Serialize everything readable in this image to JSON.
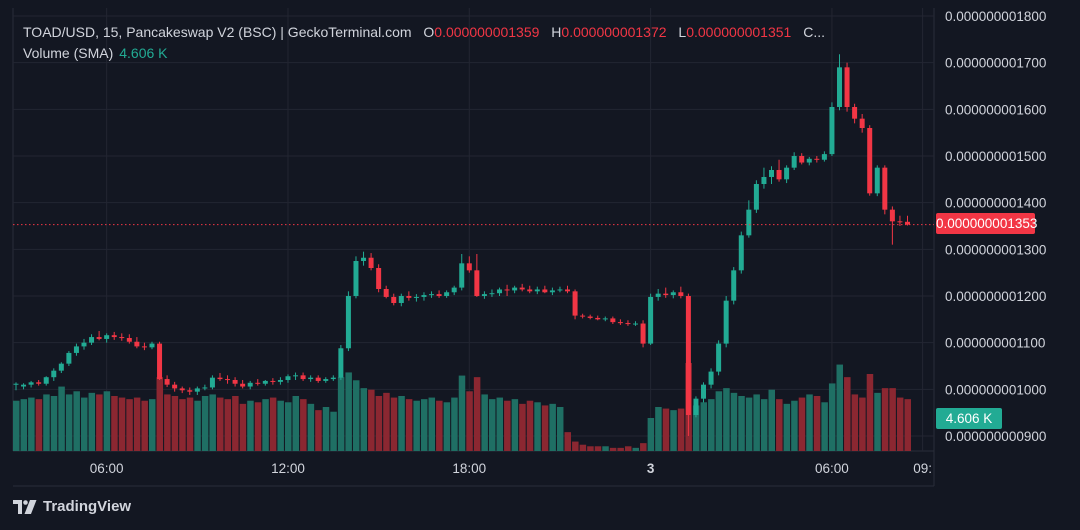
{
  "header": {
    "symbol_line": "TOAD/USD, 15, Pancakeswap V2 (BSC) | GeckoTerminal.com",
    "o_label": "O",
    "o_value": "0.000000001359",
    "h_label": "H",
    "h_value": "0.000000001372",
    "l_label": "L",
    "l_value": "0.000000001351",
    "c_label": "C..."
  },
  "volume_indicator": {
    "label": "Volume (SMA)",
    "value": "4.606 K"
  },
  "current_price_badge": "0.000000001353",
  "volume_badge": "4.606 K",
  "footer": {
    "brand": "TradingView",
    "logo_icon": "tradingview-logo-icon"
  },
  "colors": {
    "background": "#131722",
    "up": "#22ab94",
    "down": "#f23645",
    "volume_up": "#1f6f64",
    "volume_down": "#8b2731",
    "grid": "#232632",
    "text": "#d1d4dc"
  },
  "chart_data": {
    "type": "candlestick",
    "price_axis": {
      "ticks": [
        "0.000000000900",
        "0.000000001000",
        "0.000000001100",
        "0.000000001200",
        "0.000000001300",
        "0.000000001400",
        "0.000000001500",
        "0.000000001600",
        "0.000000001700",
        "0.000000001800"
      ],
      "tick_values": [
        0.9,
        1.0,
        1.1,
        1.2,
        1.3,
        1.4,
        1.5,
        1.6,
        1.7,
        1.8
      ],
      "range": [
        0.885,
        1.805
      ],
      "unit_scale": "values x 1e-9 USD"
    },
    "time_axis": {
      "ticks": [
        "06:00",
        "12:00",
        "18:00",
        "3",
        "06:00",
        "09:"
      ],
      "tick_index": [
        12,
        36,
        60,
        84,
        108,
        120
      ],
      "bold_index": 3
    },
    "current_price": 1.353,
    "volume_max": 5.6,
    "candles": [
      {
        "o": 1.01,
        "h": 1.015,
        "l": 0.998,
        "c": 1.012,
        "v": 3.2
      },
      {
        "o": 1.006,
        "h": 1.013,
        "l": 1.0,
        "c": 1.01,
        "v": 3.3
      },
      {
        "o": 1.01,
        "h": 1.018,
        "l": 1.004,
        "c": 1.015,
        "v": 3.4
      },
      {
        "o": 1.015,
        "h": 1.02,
        "l": 1.008,
        "c": 1.012,
        "v": 3.3
      },
      {
        "o": 1.012,
        "h": 1.028,
        "l": 1.008,
        "c": 1.026,
        "v": 3.6
      },
      {
        "o": 1.026,
        "h": 1.045,
        "l": 1.018,
        "c": 1.04,
        "v": 3.5
      },
      {
        "o": 1.04,
        "h": 1.058,
        "l": 1.035,
        "c": 1.055,
        "v": 4.1
      },
      {
        "o": 1.055,
        "h": 1.082,
        "l": 1.05,
        "c": 1.078,
        "v": 3.6
      },
      {
        "o": 1.078,
        "h": 1.098,
        "l": 1.072,
        "c": 1.092,
        "v": 3.8
      },
      {
        "o": 1.092,
        "h": 1.108,
        "l": 1.085,
        "c": 1.1,
        "v": 3.4
      },
      {
        "o": 1.1,
        "h": 1.118,
        "l": 1.095,
        "c": 1.112,
        "v": 3.7
      },
      {
        "o": 1.112,
        "h": 1.125,
        "l": 1.105,
        "c": 1.108,
        "v": 3.6
      },
      {
        "o": 1.108,
        "h": 1.12,
        "l": 1.1,
        "c": 1.116,
        "v": 3.8
      },
      {
        "o": 1.116,
        "h": 1.123,
        "l": 1.106,
        "c": 1.112,
        "v": 3.5
      },
      {
        "o": 1.112,
        "h": 1.12,
        "l": 1.104,
        "c": 1.11,
        "v": 3.4
      },
      {
        "o": 1.11,
        "h": 1.118,
        "l": 1.098,
        "c": 1.102,
        "v": 3.3
      },
      {
        "o": 1.102,
        "h": 1.112,
        "l": 1.088,
        "c": 1.092,
        "v": 3.4
      },
      {
        "o": 1.092,
        "h": 1.1,
        "l": 1.084,
        "c": 1.09,
        "v": 3.2
      },
      {
        "o": 1.09,
        "h": 1.102,
        "l": 1.086,
        "c": 1.098,
        "v": 3.3
      },
      {
        "o": 1.098,
        "h": 1.102,
        "l": 1.02,
        "c": 1.022,
        "v": 4.7
      },
      {
        "o": 1.022,
        "h": 1.03,
        "l": 1.005,
        "c": 1.01,
        "v": 3.6
      },
      {
        "o": 1.01,
        "h": 1.016,
        "l": 0.995,
        "c": 1.002,
        "v": 3.5
      },
      {
        "o": 1.002,
        "h": 1.006,
        "l": 0.992,
        "c": 0.998,
        "v": 3.3
      },
      {
        "o": 0.998,
        "h": 1.004,
        "l": 0.988,
        "c": 0.995,
        "v": 3.4
      },
      {
        "o": 0.995,
        "h": 1.006,
        "l": 0.988,
        "c": 1.002,
        "v": 3.2
      },
      {
        "o": 1.002,
        "h": 1.01,
        "l": 0.998,
        "c": 1.004,
        "v": 3.5
      },
      {
        "o": 1.004,
        "h": 1.03,
        "l": 1.0,
        "c": 1.025,
        "v": 3.6
      },
      {
        "o": 1.025,
        "h": 1.035,
        "l": 1.018,
        "c": 1.022,
        "v": 3.4
      },
      {
        "o": 1.022,
        "h": 1.03,
        "l": 1.012,
        "c": 1.02,
        "v": 3.3
      },
      {
        "o": 1.02,
        "h": 1.026,
        "l": 1.006,
        "c": 1.012,
        "v": 3.5
      },
      {
        "o": 1.012,
        "h": 1.02,
        "l": 1.002,
        "c": 1.006,
        "v": 3.0
      },
      {
        "o": 1.006,
        "h": 1.018,
        "l": 1.0,
        "c": 1.014,
        "v": 3.2
      },
      {
        "o": 1.014,
        "h": 1.022,
        "l": 1.008,
        "c": 1.012,
        "v": 3.1
      },
      {
        "o": 1.012,
        "h": 1.02,
        "l": 1.008,
        "c": 1.018,
        "v": 3.3
      },
      {
        "o": 1.018,
        "h": 1.024,
        "l": 1.01,
        "c": 1.016,
        "v": 3.4
      },
      {
        "o": 1.016,
        "h": 1.026,
        "l": 1.01,
        "c": 1.02,
        "v": 3.2
      },
      {
        "o": 1.02,
        "h": 1.032,
        "l": 1.014,
        "c": 1.028,
        "v": 3.1
      },
      {
        "o": 1.028,
        "h": 1.036,
        "l": 1.02,
        "c": 1.03,
        "v": 3.5
      },
      {
        "o": 1.03,
        "h": 1.036,
        "l": 1.018,
        "c": 1.022,
        "v": 3.3
      },
      {
        "o": 1.022,
        "h": 1.03,
        "l": 1.016,
        "c": 1.025,
        "v": 3.0
      },
      {
        "o": 1.025,
        "h": 1.03,
        "l": 1.014,
        "c": 1.018,
        "v": 2.6
      },
      {
        "o": 1.018,
        "h": 1.026,
        "l": 1.014,
        "c": 1.022,
        "v": 2.8
      },
      {
        "o": 1.022,
        "h": 1.03,
        "l": 1.018,
        "c": 1.025,
        "v": 2.5
      },
      {
        "o": 1.025,
        "h": 1.095,
        "l": 1.02,
        "c": 1.088,
        "v": 4.7
      },
      {
        "o": 1.088,
        "h": 1.21,
        "l": 1.082,
        "c": 1.2,
        "v": 5.0
      },
      {
        "o": 1.2,
        "h": 1.285,
        "l": 1.195,
        "c": 1.275,
        "v": 4.5
      },
      {
        "o": 1.275,
        "h": 1.295,
        "l": 1.265,
        "c": 1.282,
        "v": 4.0
      },
      {
        "o": 1.282,
        "h": 1.292,
        "l": 1.255,
        "c": 1.26,
        "v": 3.9
      },
      {
        "o": 1.26,
        "h": 1.268,
        "l": 1.208,
        "c": 1.215,
        "v": 3.5
      },
      {
        "o": 1.215,
        "h": 1.222,
        "l": 1.195,
        "c": 1.198,
        "v": 3.7
      },
      {
        "o": 1.198,
        "h": 1.205,
        "l": 1.18,
        "c": 1.185,
        "v": 3.4
      },
      {
        "o": 1.185,
        "h": 1.205,
        "l": 1.178,
        "c": 1.2,
        "v": 3.5
      },
      {
        "o": 1.2,
        "h": 1.21,
        "l": 1.19,
        "c": 1.196,
        "v": 3.3
      },
      {
        "o": 1.196,
        "h": 1.204,
        "l": 1.188,
        "c": 1.198,
        "v": 3.2
      },
      {
        "o": 1.198,
        "h": 1.208,
        "l": 1.19,
        "c": 1.202,
        "v": 3.3
      },
      {
        "o": 1.202,
        "h": 1.21,
        "l": 1.196,
        "c": 1.204,
        "v": 3.4
      },
      {
        "o": 1.204,
        "h": 1.212,
        "l": 1.196,
        "c": 1.2,
        "v": 3.2
      },
      {
        "o": 1.2,
        "h": 1.212,
        "l": 1.196,
        "c": 1.208,
        "v": 3.1
      },
      {
        "o": 1.208,
        "h": 1.222,
        "l": 1.202,
        "c": 1.218,
        "v": 3.4
      },
      {
        "o": 1.218,
        "h": 1.29,
        "l": 1.212,
        "c": 1.27,
        "v": 4.8
      },
      {
        "o": 1.27,
        "h": 1.285,
        "l": 1.25,
        "c": 1.255,
        "v": 3.8
      },
      {
        "o": 1.255,
        "h": 1.29,
        "l": 1.198,
        "c": 1.2,
        "v": 4.7
      },
      {
        "o": 1.2,
        "h": 1.21,
        "l": 1.194,
        "c": 1.204,
        "v": 3.6
      },
      {
        "o": 1.204,
        "h": 1.214,
        "l": 1.198,
        "c": 1.206,
        "v": 3.3
      },
      {
        "o": 1.206,
        "h": 1.218,
        "l": 1.2,
        "c": 1.214,
        "v": 3.4
      },
      {
        "o": 1.214,
        "h": 1.224,
        "l": 1.2,
        "c": 1.212,
        "v": 3.2
      },
      {
        "o": 1.212,
        "h": 1.222,
        "l": 1.206,
        "c": 1.218,
        "v": 3.3
      },
      {
        "o": 1.218,
        "h": 1.226,
        "l": 1.21,
        "c": 1.214,
        "v": 3.0
      },
      {
        "o": 1.214,
        "h": 1.222,
        "l": 1.206,
        "c": 1.21,
        "v": 3.2
      },
      {
        "o": 1.21,
        "h": 1.22,
        "l": 1.204,
        "c": 1.214,
        "v": 3.1
      },
      {
        "o": 1.214,
        "h": 1.222,
        "l": 1.206,
        "c": 1.208,
        "v": 2.9
      },
      {
        "o": 1.208,
        "h": 1.218,
        "l": 1.202,
        "c": 1.212,
        "v": 3.0
      },
      {
        "o": 1.212,
        "h": 1.22,
        "l": 1.208,
        "c": 1.214,
        "v": 2.8
      },
      {
        "o": 1.214,
        "h": 1.222,
        "l": 1.206,
        "c": 1.21,
        "v": 1.2
      },
      {
        "o": 1.21,
        "h": 1.214,
        "l": 1.15,
        "c": 1.158,
        "v": 0.6
      },
      {
        "o": 1.158,
        "h": 1.162,
        "l": 1.152,
        "c": 1.156,
        "v": 0.4
      },
      {
        "o": 1.156,
        "h": 1.16,
        "l": 1.15,
        "c": 1.153,
        "v": 0.3
      },
      {
        "o": 1.153,
        "h": 1.158,
        "l": 1.148,
        "c": 1.15,
        "v": 0.3
      },
      {
        "o": 1.15,
        "h": 1.156,
        "l": 1.146,
        "c": 1.152,
        "v": 0.3
      },
      {
        "o": 1.152,
        "h": 1.156,
        "l": 1.14,
        "c": 1.144,
        "v": 0.2
      },
      {
        "o": 1.144,
        "h": 1.15,
        "l": 1.138,
        "c": 1.142,
        "v": 0.2
      },
      {
        "o": 1.142,
        "h": 1.148,
        "l": 1.136,
        "c": 1.14,
        "v": 0.3
      },
      {
        "o": 1.14,
        "h": 1.146,
        "l": 1.136,
        "c": 1.141,
        "v": 0.2
      },
      {
        "o": 1.141,
        "h": 1.148,
        "l": 1.09,
        "c": 1.098,
        "v": 0.5
      },
      {
        "o": 1.098,
        "h": 1.205,
        "l": 1.095,
        "c": 1.198,
        "v": 2.1
      },
      {
        "o": 1.198,
        "h": 1.215,
        "l": 1.19,
        "c": 1.205,
        "v": 2.8
      },
      {
        "o": 1.205,
        "h": 1.218,
        "l": 1.196,
        "c": 1.202,
        "v": 2.7
      },
      {
        "o": 1.202,
        "h": 1.212,
        "l": 1.195,
        "c": 1.208,
        "v": 2.6
      },
      {
        "o": 1.208,
        "h": 1.22,
        "l": 1.195,
        "c": 1.2,
        "v": 2.7
      },
      {
        "o": 1.2,
        "h": 1.205,
        "l": 0.9,
        "c": 0.945,
        "v": 5.6
      },
      {
        "o": 0.945,
        "h": 0.985,
        "l": 0.94,
        "c": 0.98,
        "v": 2.9
      },
      {
        "o": 0.98,
        "h": 1.015,
        "l": 0.972,
        "c": 1.01,
        "v": 3.1
      },
      {
        "o": 1.01,
        "h": 1.045,
        "l": 1.002,
        "c": 1.038,
        "v": 3.3
      },
      {
        "o": 1.038,
        "h": 1.105,
        "l": 1.03,
        "c": 1.098,
        "v": 3.8
      },
      {
        "o": 1.098,
        "h": 1.2,
        "l": 1.09,
        "c": 1.19,
        "v": 4.0
      },
      {
        "o": 1.19,
        "h": 1.262,
        "l": 1.182,
        "c": 1.255,
        "v": 3.7
      },
      {
        "o": 1.255,
        "h": 1.338,
        "l": 1.248,
        "c": 1.33,
        "v": 3.5
      },
      {
        "o": 1.33,
        "h": 1.405,
        "l": 1.325,
        "c": 1.385,
        "v": 3.4
      },
      {
        "o": 1.385,
        "h": 1.448,
        "l": 1.378,
        "c": 1.44,
        "v": 3.6
      },
      {
        "o": 1.44,
        "h": 1.475,
        "l": 1.43,
        "c": 1.455,
        "v": 3.3
      },
      {
        "o": 1.455,
        "h": 1.478,
        "l": 1.44,
        "c": 1.47,
        "v": 3.9
      },
      {
        "o": 1.47,
        "h": 1.492,
        "l": 1.445,
        "c": 1.45,
        "v": 3.3
      },
      {
        "o": 1.45,
        "h": 1.48,
        "l": 1.442,
        "c": 1.475,
        "v": 3.0
      },
      {
        "o": 1.475,
        "h": 1.508,
        "l": 1.47,
        "c": 1.5,
        "v": 3.2
      },
      {
        "o": 1.5,
        "h": 1.506,
        "l": 1.482,
        "c": 1.486,
        "v": 3.4
      },
      {
        "o": 1.486,
        "h": 1.498,
        "l": 1.48,
        "c": 1.494,
        "v": 3.6
      },
      {
        "o": 1.494,
        "h": 1.5,
        "l": 1.486,
        "c": 1.492,
        "v": 3.5
      },
      {
        "o": 1.492,
        "h": 1.51,
        "l": 1.488,
        "c": 1.504,
        "v": 3.1
      },
      {
        "o": 1.504,
        "h": 1.615,
        "l": 1.5,
        "c": 1.605,
        "v": 4.3
      },
      {
        "o": 1.605,
        "h": 1.718,
        "l": 1.598,
        "c": 1.69,
        "v": 5.5
      },
      {
        "o": 1.69,
        "h": 1.7,
        "l": 1.595,
        "c": 1.605,
        "v": 4.7
      },
      {
        "o": 1.605,
        "h": 1.612,
        "l": 1.57,
        "c": 1.58,
        "v": 3.6
      },
      {
        "o": 1.58,
        "h": 1.59,
        "l": 1.55,
        "c": 1.56,
        "v": 3.4
      },
      {
        "o": 1.56,
        "h": 1.566,
        "l": 1.415,
        "c": 1.42,
        "v": 4.9
      },
      {
        "o": 1.42,
        "h": 1.48,
        "l": 1.414,
        "c": 1.475,
        "v": 3.7
      },
      {
        "o": 1.475,
        "h": 1.48,
        "l": 1.375,
        "c": 1.385,
        "v": 4.0
      },
      {
        "o": 1.385,
        "h": 1.392,
        "l": 1.31,
        "c": 1.36,
        "v": 4.0
      },
      {
        "o": 1.36,
        "h": 1.372,
        "l": 1.35,
        "c": 1.358,
        "v": 3.4
      },
      {
        "o": 1.359,
        "h": 1.372,
        "l": 1.351,
        "c": 1.353,
        "v": 3.3
      }
    ]
  }
}
